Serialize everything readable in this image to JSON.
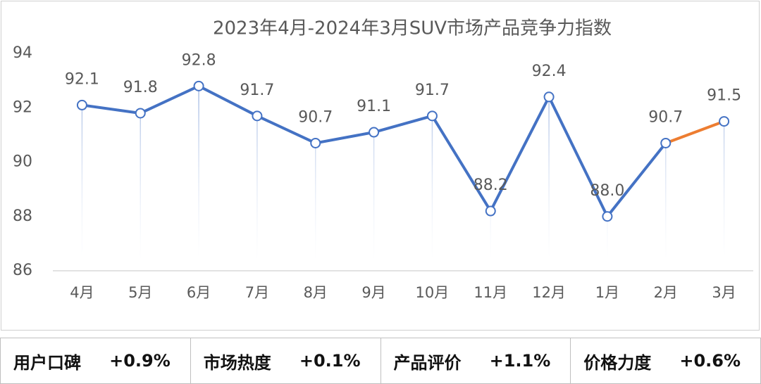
{
  "chart_data": {
    "type": "line",
    "title": "2023年4月-2024年3月SUV市场产品竞争力指数",
    "categories": [
      "4月",
      "5月",
      "6月",
      "7月",
      "8月",
      "9月",
      "10月",
      "11月",
      "12月",
      "1月",
      "2月",
      "3月"
    ],
    "values": [
      92.1,
      91.8,
      92.8,
      91.7,
      90.7,
      91.1,
      91.7,
      88.2,
      92.4,
      88.0,
      90.7,
      91.5
    ],
    "value_labels": [
      "92.1",
      "91.8",
      "92.8",
      "91.7",
      "90.7",
      "91.1",
      "91.7",
      "88.2",
      "92.4",
      "88.0",
      "90.7",
      "91.5"
    ],
    "color": "#4472c4",
    "last_segment_color": "#ed7d31",
    "ylim": [
      86,
      94
    ],
    "yticks": [
      86,
      88,
      90,
      92,
      94
    ],
    "grid": false
  },
  "table": {
    "cells": [
      {
        "label": "用户口碑",
        "value": "+0.9%"
      },
      {
        "label": "市场热度",
        "value": "+0.1%"
      },
      {
        "label": "产品评价",
        "value": "+1.1%"
      },
      {
        "label": "价格力度",
        "value": "+0.6%"
      }
    ]
  }
}
